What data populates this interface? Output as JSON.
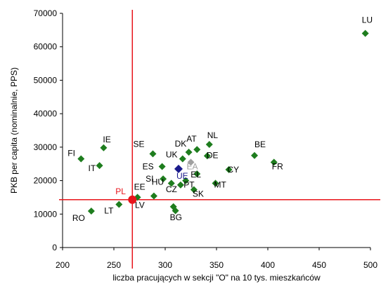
{
  "chart_data": {
    "type": "scatter",
    "xlabel": "liczba pracujących w sekcji \"O\" na 10 tys. mieszkańców",
    "ylabel": "PKB per capita (nominalnie, PPS)",
    "xlim": [
      200,
      500
    ],
    "ylim": [
      0,
      70000
    ],
    "xticks": [
      200,
      250,
      300,
      350,
      400,
      450,
      500
    ],
    "yticks": [
      0,
      10000,
      20000,
      30000,
      40000,
      50000,
      60000,
      70000
    ],
    "grid": false,
    "reference_lines": {
      "x": 268,
      "y": 14300,
      "color": "#e8141b"
    },
    "colors": {
      "country": "#1e7d1e",
      "eu": "#1a1a8c",
      "ea": "#a0a0a0",
      "pl": "#e8141b"
    },
    "points": [
      {
        "label": "LU",
        "x": 495,
        "y": 64000,
        "kind": "country"
      },
      {
        "label": "FI",
        "x": 218,
        "y": 26500,
        "kind": "country"
      },
      {
        "label": "IE",
        "x": 240,
        "y": 29800,
        "kind": "country"
      },
      {
        "label": "IT",
        "x": 236,
        "y": 24500,
        "kind": "country"
      },
      {
        "label": "SE",
        "x": 288,
        "y": 28000,
        "kind": "country"
      },
      {
        "label": "ES",
        "x": 297,
        "y": 24200,
        "kind": "country"
      },
      {
        "label": "UK",
        "x": 317,
        "y": 26500,
        "kind": "country"
      },
      {
        "label": "DK",
        "x": 323,
        "y": 28500,
        "kind": "country"
      },
      {
        "label": "AT",
        "x": 331,
        "y": 29300,
        "kind": "country"
      },
      {
        "label": "NL",
        "x": 343,
        "y": 30800,
        "kind": "country"
      },
      {
        "label": "DE",
        "x": 341,
        "y": 27400,
        "kind": "country"
      },
      {
        "label": "EL",
        "x": 331,
        "y": 22000,
        "kind": "country"
      },
      {
        "label": "SI",
        "x": 298,
        "y": 20500,
        "kind": "country"
      },
      {
        "label": "HU",
        "x": 306,
        "y": 19200,
        "kind": "country"
      },
      {
        "label": "CZ",
        "x": 315,
        "y": 18700,
        "kind": "country"
      },
      {
        "label": "PT",
        "x": 320,
        "y": 20000,
        "kind": "country"
      },
      {
        "label": "SK",
        "x": 328,
        "y": 17300,
        "kind": "country"
      },
      {
        "label": "MT",
        "x": 349,
        "y": 19200,
        "kind": "country"
      },
      {
        "label": "CY",
        "x": 362,
        "y": 23300,
        "kind": "country"
      },
      {
        "label": "BE",
        "x": 387,
        "y": 27500,
        "kind": "country"
      },
      {
        "label": "FR",
        "x": 406,
        "y": 25500,
        "kind": "country"
      },
      {
        "label": "EE",
        "x": 273,
        "y": 15000,
        "kind": "country"
      },
      {
        "label": "LV",
        "x": 289,
        "y": 15400,
        "kind": "country"
      },
      {
        "label": "LT",
        "x": 255,
        "y": 12900,
        "kind": "country"
      },
      {
        "label": "RO",
        "x": 228,
        "y": 10900,
        "kind": "country"
      },
      {
        "label": "BG",
        "x": 308,
        "y": 12200,
        "kind": "country"
      },
      {
        "label": "",
        "x": 310,
        "y": 11000,
        "kind": "country"
      },
      {
        "label": "UE",
        "x": 313,
        "y": 23500,
        "kind": "eu"
      },
      {
        "label": "EA",
        "x": 325,
        "y": 25500,
        "kind": "ea"
      },
      {
        "label": "PL",
        "x": 268,
        "y": 14300,
        "kind": "pl"
      }
    ]
  }
}
